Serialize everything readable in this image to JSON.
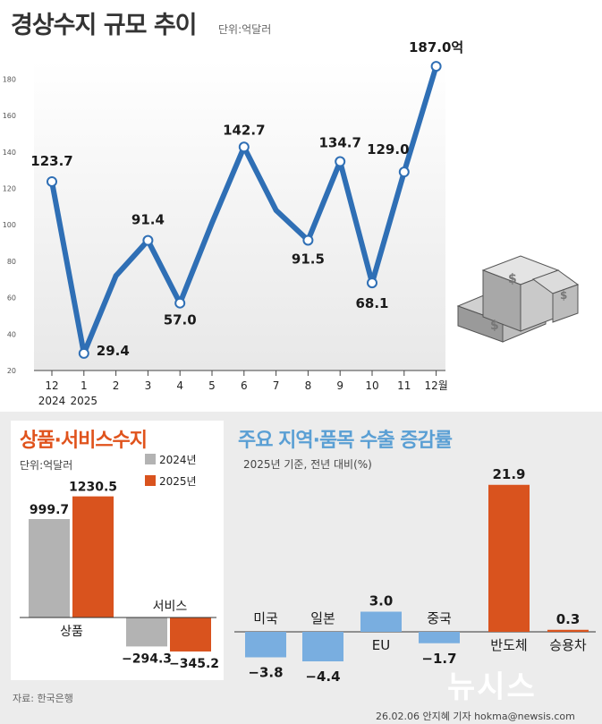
{
  "title": "경상수지 규모 추이",
  "unit": "단위:억달러",
  "chart_data": [
    {
      "type": "line",
      "x": [
        "12",
        "1",
        "2",
        "3",
        "4",
        "5",
        "6",
        "7",
        "8",
        "9",
        "10",
        "11",
        "12월"
      ],
      "year_labels": [
        "2024",
        "2025"
      ],
      "values": [
        123.7,
        29.4,
        72,
        91.4,
        57.0,
        101,
        142.7,
        108,
        91.5,
        134.7,
        68.1,
        129.0,
        187.0
      ],
      "point_labels": [
        "123.7",
        "29.4",
        "",
        "91.4",
        "57.0",
        "",
        "142.7",
        "",
        "91.5",
        "134.7",
        "68.1",
        "129.0",
        "187.0억"
      ],
      "ylim": [
        20,
        190
      ],
      "yticks": [
        "20",
        "40",
        "60",
        "80",
        "100",
        "120",
        "140",
        "160",
        "180"
      ],
      "color": "#2f6fb5",
      "grid": false
    },
    {
      "type": "bar",
      "title": "상품·서비스수지",
      "unit": "단위:억달러",
      "categories": [
        "상품",
        "서비스"
      ],
      "series": [
        {
          "name": "2024년",
          "values": [
            999.7,
            -294.3
          ],
          "labels": [
            "999.7",
            "−294.3"
          ],
          "color": "#b3b3b3"
        },
        {
          "name": "2025년",
          "values": [
            1230.5,
            -345.2
          ],
          "labels": [
            "1230.5",
            "−345.2"
          ],
          "color": "#d9531e"
        }
      ]
    },
    {
      "type": "bar",
      "title": "주요 지역·품목 수출 증감률",
      "subtitle": "2025년 기준, 전년 대비(%)",
      "categories": [
        "미국",
        "일본",
        "EU",
        "중국",
        "반도체",
        "승용차"
      ],
      "values": [
        -3.8,
        -4.4,
        3.0,
        -1.7,
        21.9,
        0.3
      ],
      "labels": [
        "−3.8",
        "−4.4",
        "3.0",
        "−1.7",
        "21.9",
        "0.3"
      ],
      "colors": [
        "#79aee0",
        "#79aee0",
        "#79aee0",
        "#79aee0",
        "#d9531e",
        "#d9531e"
      ]
    }
  ],
  "source": "자료: 한국은행",
  "credit": "26.02.06 안지혜 기자 hokma@newsis.com",
  "logo": "뉴시스"
}
